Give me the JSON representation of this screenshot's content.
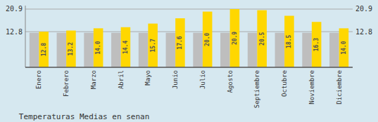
{
  "chart_data": {
    "type": "bar",
    "title": "Temperaturas Medias en senan",
    "categories": [
      "Enero",
      "Febrero",
      "Marzo",
      "Abril",
      "Mayo",
      "Junio",
      "Julio",
      "Agosto",
      "Septiembre",
      "Octubre",
      "Noviembre",
      "Diciembre"
    ],
    "series": [
      {
        "color": "#BEBEBE",
        "values": [
          12.4,
          12.4,
          12.4,
          12.4,
          12.4,
          12.4,
          12.4,
          12.4,
          12.4,
          12.4,
          12.4,
          12.4
        ]
      },
      {
        "color": "#FFD700",
        "data_labels": true,
        "values": [
          12.8,
          13.2,
          14.0,
          14.4,
          15.7,
          17.6,
          20.0,
          20.9,
          20.5,
          18.5,
          16.3,
          14.0
        ],
        "value_labels": [
          "12.8",
          "13.2",
          "14.0",
          "14.4",
          "15.7",
          "17.6",
          "20.0",
          "20.9",
          "20.5",
          "18.5",
          "16.3",
          "14.0"
        ]
      }
    ],
    "ylim": [
      0,
      22.154
    ],
    "yticks": [
      12.8,
      20.9
    ],
    "grid": true
  }
}
